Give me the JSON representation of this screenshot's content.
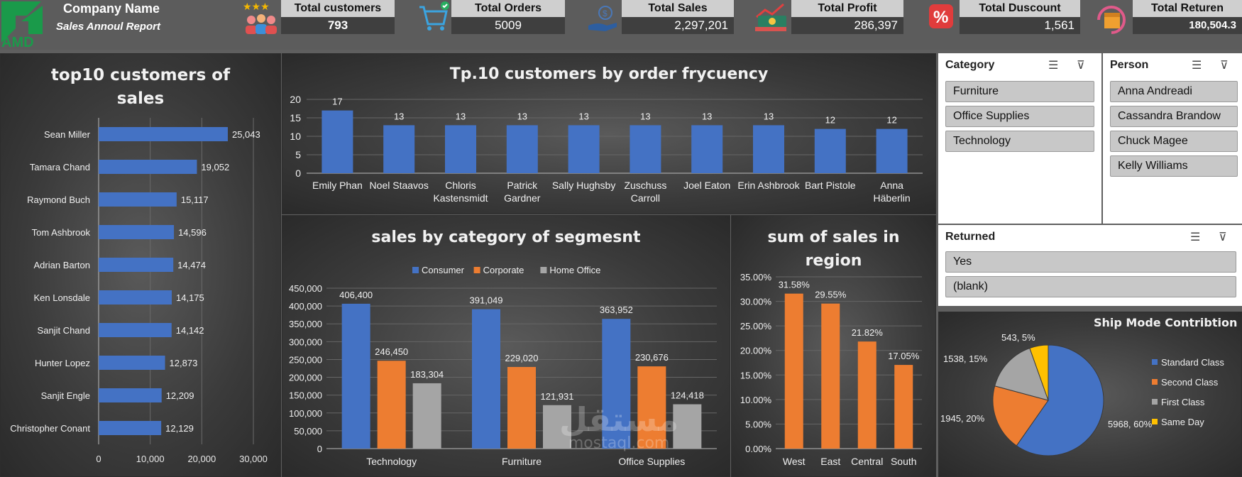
{
  "header": {
    "company_name": "Company Name",
    "subtitle": "Sales Annoul Report",
    "logo_text": "AMD",
    "kpis": [
      {
        "label": "Total customers",
        "value": "793",
        "icon": "customers-icon"
      },
      {
        "label": "Total Orders",
        "value": "5009",
        "icon": "cart-icon"
      },
      {
        "label": "Total Sales",
        "value": "2,297,201",
        "icon": "money-hand-icon"
      },
      {
        "label": "Total Profit",
        "value": "286,397",
        "icon": "profit-icon"
      },
      {
        "label": "Total Duscount",
        "value": "1,561",
        "icon": "percent-icon"
      },
      {
        "label": "Total Returen",
        "value": "180,504.3",
        "icon": "return-box-icon"
      }
    ]
  },
  "chart_data": [
    {
      "type": "bar",
      "orientation": "horizontal",
      "title": "top10 customers of sales",
      "categories": [
        "Sean Miller",
        "Tamara Chand",
        "Raymond Buch",
        "Tom Ashbrook",
        "Adrian Barton",
        "Ken Lonsdale",
        "Sanjit Chand",
        "Hunter Lopez",
        "Sanjit Engle",
        "Christopher Conant"
      ],
      "values": [
        25043,
        19052,
        15117,
        14596,
        14474,
        14175,
        14142,
        12873,
        12209,
        12129
      ],
      "value_labels": [
        "25,043",
        "19,052",
        "15,117",
        "14,596",
        "14,474",
        "14,175",
        "14,142",
        "12,873",
        "12,209",
        "12,129"
      ],
      "xlim": [
        0,
        30000
      ],
      "x_ticks": [
        "0",
        "10,000",
        "20,000",
        "30,000"
      ],
      "color": "#4472c4"
    },
    {
      "type": "bar",
      "title": "Tp.10 customers by order frycuency",
      "categories": [
        "Emily Phan",
        "Noel Staavos",
        "Chloris Kastensmidt",
        "Patrick Gardner",
        "Sally Hughsby",
        "Zuschuss Carroll",
        "Joel Eaton",
        "Erin Ashbrook",
        "Bart Pistole",
        "Anna Häberlin"
      ],
      "values": [
        17,
        13,
        13,
        13,
        13,
        13,
        13,
        13,
        12,
        12
      ],
      "ylim": [
        0,
        20
      ],
      "y_ticks": [
        "0",
        "5",
        "10",
        "15",
        "20"
      ],
      "color": "#4472c4"
    },
    {
      "type": "bar",
      "title": "sales by category of segmesnt",
      "categories": [
        "Technology",
        "Furniture",
        "Office Supplies"
      ],
      "series": [
        {
          "name": "Consumer",
          "values": [
            406400,
            391049,
            363952
          ],
          "labels": [
            "406,400",
            "391,049",
            "363,952"
          ],
          "color": "#4472c4"
        },
        {
          "name": "Corporate",
          "values": [
            246450,
            229020,
            230676
          ],
          "labels": [
            "246,450",
            "229,020",
            "230,676"
          ],
          "color": "#ed7d31"
        },
        {
          "name": "Home Office",
          "values": [
            183304,
            121931,
            124418
          ],
          "labels": [
            "183,304",
            "121,931",
            "124,418"
          ],
          "color": "#a5a5a5"
        }
      ],
      "ylim": [
        0,
        450000
      ],
      "y_ticks": [
        "0",
        "50,000",
        "100,000",
        "150,000",
        "200,000",
        "250,000",
        "300,000",
        "350,000",
        "400,000",
        "450,000"
      ],
      "legend": "top"
    },
    {
      "type": "bar",
      "title": "sum of sales in region",
      "categories": [
        "West",
        "East",
        "Central",
        "South"
      ],
      "values": [
        31.58,
        29.55,
        21.82,
        17.05
      ],
      "value_labels": [
        "31.58%",
        "29.55%",
        "21.82%",
        "17.05%"
      ],
      "ylim": [
        0,
        35
      ],
      "y_ticks": [
        "0.00%",
        "5.00%",
        "10.00%",
        "15.00%",
        "20.00%",
        "25.00%",
        "30.00%",
        "35.00%"
      ],
      "color": "#ed7d31"
    },
    {
      "type": "pie",
      "title": "Ship Mode Contribtion",
      "slices": [
        {
          "name": "Standard Class",
          "value": 5968,
          "label": "5968, 60%",
          "color": "#4472c4"
        },
        {
          "name": "Second Class",
          "value": 1945,
          "label": "1945, 20%",
          "color": "#ed7d31"
        },
        {
          "name": "First Class",
          "value": 1538,
          "label": "1538, 15%",
          "color": "#a5a5a5"
        },
        {
          "name": "Same Day",
          "value": 543,
          "label": "543, 5%",
          "color": "#ffc000"
        }
      ],
      "legend": "right"
    }
  ],
  "slicers": {
    "category": {
      "title": "Category",
      "items": [
        "Furniture",
        "Office Supplies",
        "Technology"
      ]
    },
    "person": {
      "title": "Person",
      "items": [
        "Anna Andreadi",
        "Cassandra Brandow",
        "Chuck Magee",
        "Kelly Williams"
      ]
    },
    "returned": {
      "title": "Returned",
      "items": [
        "Yes",
        "(blank)"
      ]
    }
  },
  "watermark": {
    "arabic": "مستقل",
    "latin": "mostaql.com"
  }
}
